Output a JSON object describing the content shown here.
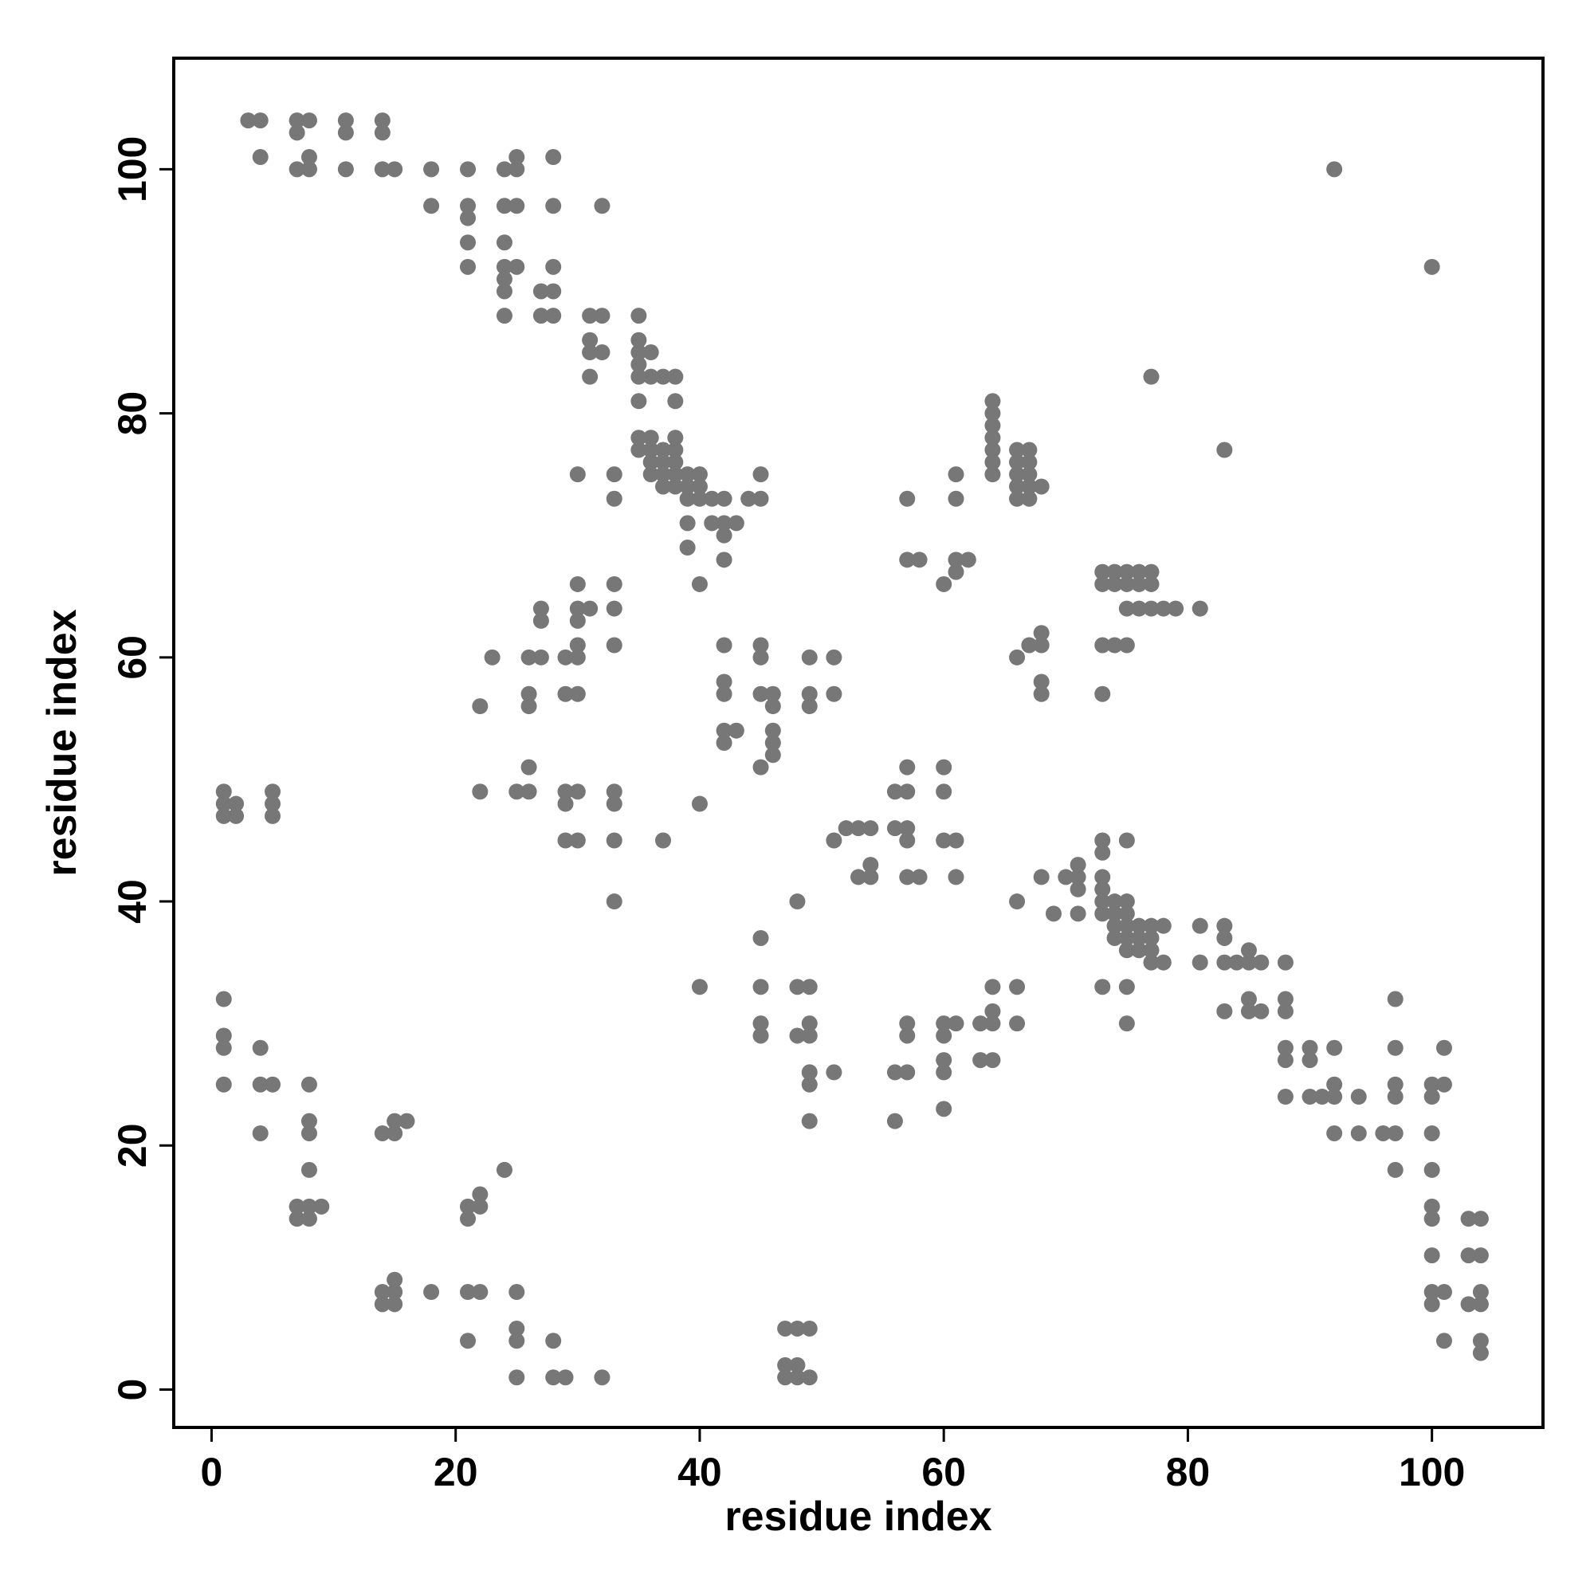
{
  "chart_data": {
    "type": "scatter",
    "xlabel": "residue index",
    "ylabel": "residue index",
    "xlim": [
      -3.1,
      109.1
    ],
    "ylim": [
      -3.1,
      109.1
    ],
    "xticks": [
      0,
      20,
      40,
      60,
      80,
      100
    ],
    "yticks": [
      0,
      20,
      40,
      60,
      80,
      100
    ],
    "series": [
      {
        "color": "#777777",
        "x": [
          3,
          4,
          7,
          8,
          11,
          14,
          7,
          11,
          14,
          4,
          8,
          25,
          28,
          7,
          8,
          11,
          14,
          15,
          18,
          21,
          24,
          25,
          92,
          18,
          21,
          24,
          25,
          28,
          32,
          21,
          21,
          24,
          21,
          24,
          25,
          28,
          100,
          24,
          24,
          27,
          28,
          24,
          27,
          28,
          31,
          32,
          35,
          31,
          35,
          31,
          32,
          35,
          36,
          35,
          31,
          35,
          36,
          37,
          38,
          77,
          35,
          38,
          64,
          64,
          64,
          35,
          36,
          38,
          64,
          35,
          36,
          37,
          38,
          64,
          66,
          67,
          83,
          36,
          37,
          38,
          64,
          66,
          67,
          30,
          33,
          36,
          37,
          38,
          39,
          40,
          45,
          61,
          64,
          66,
          67,
          37,
          38,
          39,
          40,
          66,
          67,
          68,
          33,
          39,
          40,
          41,
          42,
          44,
          45,
          57,
          61,
          66,
          67,
          39,
          41,
          42,
          43,
          42,
          39,
          42,
          57,
          58,
          61,
          62,
          61,
          73,
          74,
          75,
          76,
          77,
          30,
          33,
          40,
          60,
          73,
          74,
          75,
          76,
          77,
          27,
          30,
          31,
          33,
          75,
          76,
          77,
          78,
          79,
          81,
          27,
          30,
          68,
          30,
          33,
          42,
          45,
          67,
          68,
          73,
          74,
          75,
          23,
          26,
          27,
          29,
          30,
          45,
          49,
          51,
          66,
          42,
          68,
          26,
          29,
          30,
          42,
          45,
          46,
          49,
          51,
          68,
          73,
          22,
          26,
          46,
          49,
          42,
          43,
          46,
          42,
          46,
          46,
          26,
          45,
          57,
          60,
          1,
          5,
          22,
          25,
          26,
          29,
          30,
          33,
          56,
          57,
          60,
          1,
          2,
          5,
          29,
          33,
          40,
          1,
          2,
          5,
          52,
          53,
          54,
          56,
          57,
          29,
          30,
          33,
          37,
          51,
          57,
          60,
          61,
          73,
          75,
          73,
          54,
          71,
          53,
          54,
          57,
          58,
          61,
          68,
          70,
          71,
          73,
          71,
          73,
          33,
          48,
          66,
          73,
          74,
          75,
          69,
          71,
          73,
          74,
          75,
          74,
          75,
          76,
          77,
          78,
          81,
          83,
          45,
          74,
          75,
          76,
          77,
          83,
          75,
          76,
          77,
          85,
          77,
          78,
          81,
          83,
          84,
          85,
          86,
          88,
          40,
          45,
          48,
          49,
          64,
          66,
          73,
          75,
          1,
          85,
          88,
          97,
          64,
          83,
          85,
          86,
          88,
          45,
          49,
          57,
          60,
          61,
          63,
          64,
          66,
          75,
          1,
          45,
          48,
          49,
          57,
          60,
          1,
          4,
          88,
          90,
          92,
          97,
          101,
          60,
          63,
          64,
          88,
          90,
          49,
          51,
          56,
          57,
          60,
          1,
          4,
          5,
          8,
          49,
          92,
          97,
          100,
          101,
          88,
          90,
          91,
          92,
          94,
          97,
          100,
          60,
          8,
          15,
          16,
          49,
          56,
          4,
          8,
          14,
          15,
          92,
          94,
          96,
          97,
          100,
          8,
          24,
          97,
          100,
          22,
          7,
          8,
          9,
          21,
          22,
          100,
          7,
          8,
          21,
          100,
          103,
          104,
          100,
          103,
          104,
          15,
          14,
          15,
          18,
          21,
          22,
          25,
          100,
          101,
          104,
          14,
          15,
          100,
          103,
          104,
          25,
          47,
          48,
          49,
          21,
          25,
          28,
          101,
          104,
          104,
          47,
          48,
          25,
          28,
          29,
          32,
          47,
          48,
          49
        ],
        "y": [
          104,
          104,
          104,
          104,
          104,
          104,
          103,
          103,
          103,
          101,
          101,
          101,
          101,
          100,
          100,
          100,
          100,
          100,
          100,
          100,
          100,
          100,
          100,
          97,
          97,
          97,
          97,
          97,
          97,
          96,
          94,
          94,
          92,
          92,
          92,
          92,
          92,
          91,
          90,
          90,
          90,
          88,
          88,
          88,
          88,
          88,
          88,
          86,
          86,
          85,
          85,
          85,
          85,
          84,
          83,
          83,
          83,
          83,
          83,
          83,
          81,
          81,
          81,
          80,
          79,
          78,
          78,
          78,
          78,
          77,
          77,
          77,
          77,
          77,
          77,
          77,
          77,
          76,
          76,
          76,
          76,
          76,
          76,
          75,
          75,
          75,
          75,
          75,
          75,
          75,
          75,
          75,
          75,
          75,
          75,
          74,
          74,
          74,
          74,
          74,
          74,
          74,
          73,
          73,
          73,
          73,
          73,
          73,
          73,
          73,
          73,
          73,
          73,
          71,
          71,
          71,
          71,
          70,
          69,
          68,
          68,
          68,
          68,
          68,
          67,
          67,
          67,
          67,
          67,
          67,
          66,
          66,
          66,
          66,
          66,
          66,
          66,
          66,
          66,
          64,
          64,
          64,
          64,
          64,
          64,
          64,
          64,
          64,
          64,
          63,
          63,
          62,
          61,
          61,
          61,
          61,
          61,
          61,
          61,
          61,
          61,
          60,
          60,
          60,
          60,
          60,
          60,
          60,
          60,
          60,
          58,
          58,
          57,
          57,
          57,
          57,
          57,
          57,
          57,
          57,
          57,
          57,
          56,
          56,
          56,
          56,
          54,
          54,
          54,
          53,
          53,
          52,
          51,
          51,
          51,
          51,
          49,
          49,
          49,
          49,
          49,
          49,
          49,
          49,
          49,
          49,
          49,
          48,
          48,
          48,
          48,
          48,
          48,
          47,
          47,
          47,
          46,
          46,
          46,
          46,
          46,
          45,
          45,
          45,
          45,
          45,
          45,
          45,
          45,
          45,
          45,
          44,
          43,
          43,
          42,
          42,
          42,
          42,
          42,
          42,
          42,
          42,
          42,
          41,
          41,
          40,
          40,
          40,
          40,
          40,
          40,
          39,
          39,
          39,
          39,
          39,
          38,
          38,
          38,
          38,
          38,
          38,
          38,
          37,
          37,
          37,
          37,
          37,
          37,
          36,
          36,
          36,
          36,
          35,
          35,
          35,
          35,
          35,
          35,
          35,
          35,
          33,
          33,
          33,
          33,
          33,
          33,
          33,
          33,
          32,
          32,
          32,
          32,
          31,
          31,
          31,
          31,
          31,
          30,
          30,
          30,
          30,
          30,
          30,
          30,
          30,
          30,
          29,
          29,
          29,
          29,
          29,
          29,
          28,
          28,
          28,
          28,
          28,
          28,
          28,
          27,
          27,
          27,
          27,
          27,
          26,
          26,
          26,
          26,
          26,
          25,
          25,
          25,
          25,
          25,
          25,
          25,
          25,
          25,
          24,
          24,
          24,
          24,
          24,
          24,
          24,
          23,
          22,
          22,
          22,
          22,
          22,
          21,
          21,
          21,
          21,
          21,
          21,
          21,
          21,
          21,
          18,
          18,
          18,
          18,
          16,
          15,
          15,
          15,
          15,
          15,
          15,
          14,
          14,
          14,
          14,
          14,
          14,
          11,
          11,
          11,
          9,
          8,
          8,
          8,
          8,
          8,
          8,
          8,
          8,
          8,
          7,
          7,
          7,
          7,
          7,
          5,
          5,
          5,
          5,
          4,
          4,
          4,
          4,
          4,
          3,
          2,
          2,
          1,
          1,
          1,
          1,
          1,
          1,
          1
        ]
      }
    ]
  }
}
